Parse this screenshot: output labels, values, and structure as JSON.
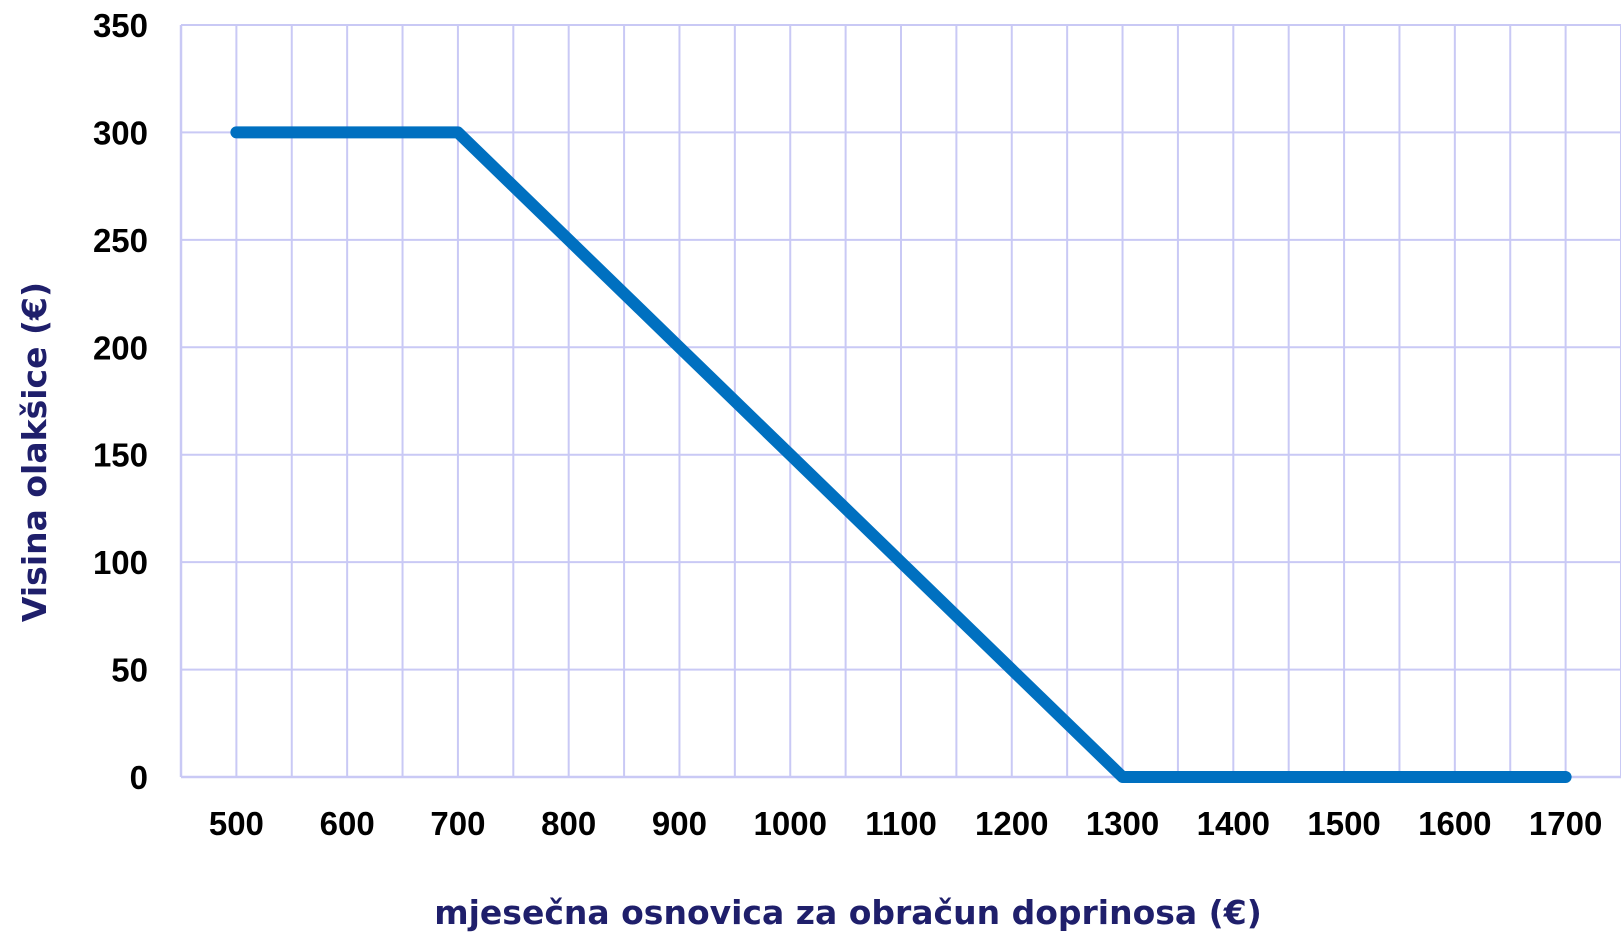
{
  "chart_data": {
    "type": "line",
    "x": [
      500,
      600,
      700,
      800,
      900,
      1000,
      1100,
      1200,
      1300,
      1400,
      1500,
      1600,
      1700
    ],
    "series": [
      {
        "values": [
          300,
          300,
          300,
          250,
          200,
          150,
          100,
          50,
          0,
          0,
          0,
          0,
          0
        ]
      }
    ],
    "x_tick_labels": [
      "500",
      "600",
      "700",
      "800",
      "900",
      "1000",
      "1100",
      "1200",
      "1300",
      "1400",
      "1500",
      "1600",
      "1700"
    ],
    "y_ticks": [
      0,
      50,
      100,
      150,
      200,
      250,
      300,
      350
    ],
    "y_tick_labels": [
      "0",
      "50",
      "100",
      "150",
      "200",
      "250",
      "300",
      "350"
    ],
    "xlim": [
      450,
      1750
    ],
    "ylim": [
      0,
      350
    ],
    "xlabel": "mjesečna osnovica za obračun doprinosa (€)",
    "ylabel": "Visina olakšice (€)",
    "grid": true,
    "minor_x_grid": true,
    "colors": {
      "line": "#0070c0",
      "grid": "#c9c9f5",
      "axis_title": "#1f1f6b",
      "tick_label": "#000000"
    }
  }
}
